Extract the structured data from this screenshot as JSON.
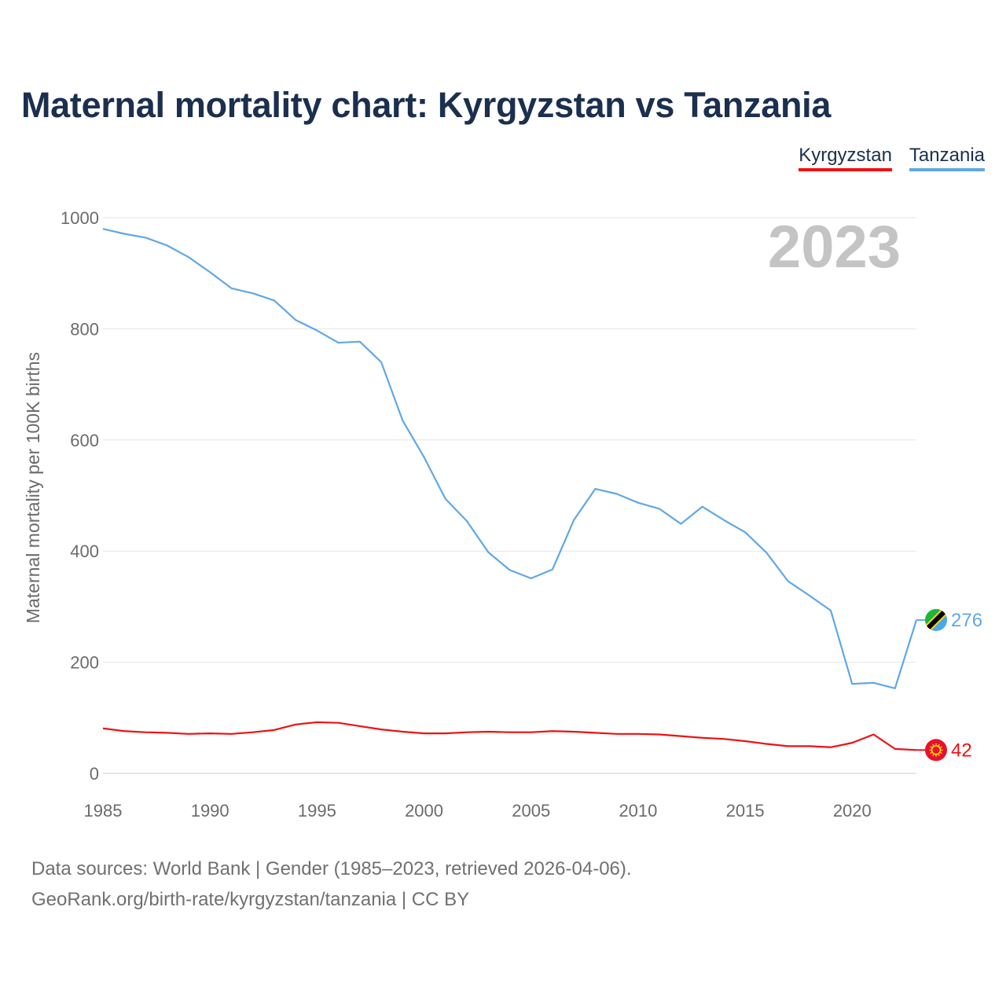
{
  "title": "Maternal mortality chart: Kyrgyzstan vs Tanzania",
  "legend": [
    {
      "label": "Kyrgyzstan",
      "color": "#ee1111"
    },
    {
      "label": "Tanzania",
      "color": "#5fa8e6"
    }
  ],
  "footer": {
    "line1": "Data sources: World Bank | Gender (1985–2023, retrieved 2026-04-06).",
    "line2": "GeoRank.org/birth-rate/kyrgyzstan/tanzania | CC BY"
  },
  "chart_data": {
    "type": "line",
    "title": "Maternal mortality chart: Kyrgyzstan vs Tanzania",
    "xlabel": "",
    "ylabel": "Maternal mortality per 100K births",
    "year_label": "2023",
    "xlim": [
      1985,
      2023
    ],
    "ylim": [
      0,
      1000
    ],
    "x_ticks": [
      1985,
      1990,
      1995,
      2000,
      2005,
      2010,
      2015,
      2020
    ],
    "y_ticks": [
      0,
      200,
      400,
      600,
      800,
      1000
    ],
    "grid": true,
    "legend_position": "top-right",
    "x": [
      1985,
      1986,
      1987,
      1988,
      1989,
      1990,
      1991,
      1992,
      1993,
      1994,
      1995,
      1996,
      1997,
      1998,
      1999,
      2000,
      2001,
      2002,
      2003,
      2004,
      2005,
      2006,
      2007,
      2008,
      2009,
      2010,
      2011,
      2012,
      2013,
      2014,
      2015,
      2016,
      2017,
      2018,
      2019,
      2020,
      2021,
      2022,
      2023
    ],
    "series": [
      {
        "name": "Kyrgyzstan",
        "color": "#ee1111",
        "flag_icon": "kyrgyzstan-flag-icon",
        "end_value": "42",
        "values": [
          81,
          76,
          74,
          73,
          71,
          72,
          71,
          74,
          78,
          88,
          92,
          91,
          85,
          79,
          75,
          72,
          72,
          74,
          75,
          74,
          74,
          76,
          75,
          73,
          71,
          71,
          70,
          67,
          64,
          62,
          58,
          53,
          49,
          49,
          47,
          55,
          70,
          44,
          42
        ]
      },
      {
        "name": "Tanzania",
        "color": "#5fa8e6",
        "flag_icon": "tanzania-flag-icon",
        "end_value": "276",
        "values": [
          980,
          971,
          964,
          950,
          929,
          902,
          873,
          864,
          851,
          816,
          797,
          775,
          777,
          740,
          635,
          569,
          494,
          454,
          398,
          366,
          351,
          367,
          456,
          512,
          503,
          487,
          476,
          449,
          480,
          456,
          434,
          397,
          346,
          320,
          293,
          161,
          163,
          153,
          276
        ]
      }
    ]
  }
}
